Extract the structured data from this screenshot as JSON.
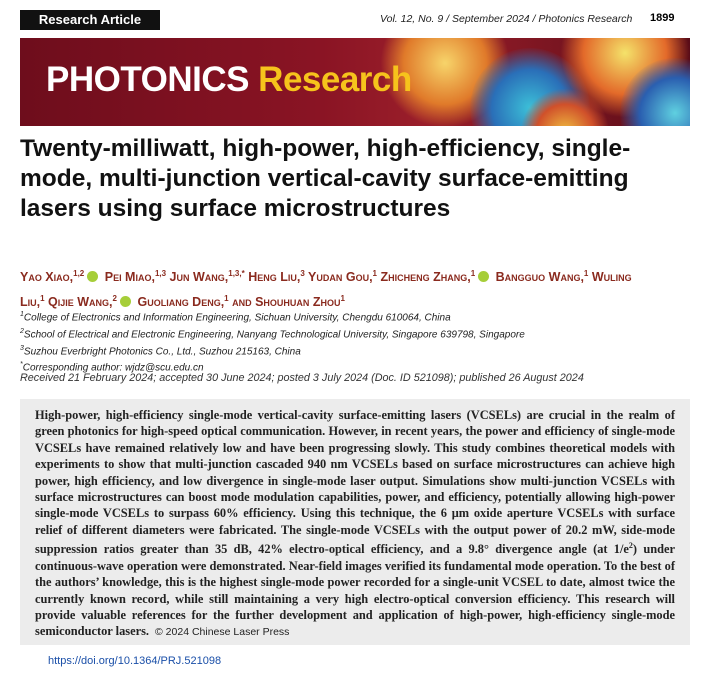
{
  "header": {
    "label": "Research Article",
    "citation": "Vol. 12, No. 9 / September 2024 / Photonics Research",
    "page": "1899"
  },
  "banner": {
    "word1": "PHOTONICS",
    "word2": "Research"
  },
  "title": "Twenty-milliwatt, high-power, high-efficiency, single-mode, multi-junction vertical-cavity surface-emitting lasers using surface microstructures",
  "authors": [
    {
      "name": "Yao Xiao,",
      "sup": "1,2",
      "orcid": true
    },
    {
      "name": "Pei Miao,",
      "sup": "1,3",
      "orcid": false
    },
    {
      "name": "Jun Wang,",
      "sup": "1,3,*",
      "orcid": false
    },
    {
      "name": "Heng Liu,",
      "sup": "3",
      "orcid": false
    },
    {
      "name": "Yudan Gou,",
      "sup": "1",
      "orcid": false
    },
    {
      "name": "Zhicheng Zhang,",
      "sup": "1",
      "orcid": true
    },
    {
      "name": "Bangguo Wang,",
      "sup": "1",
      "orcid": false
    },
    {
      "name": "Wuling Liu,",
      "sup": "1",
      "orcid": false
    },
    {
      "name": "Qijie Wang,",
      "sup": "2",
      "orcid": true
    },
    {
      "name": "Guoliang Deng,",
      "sup": "1",
      "orcid": false
    },
    {
      "name": "and Shouhuan Zhou",
      "sup": "1",
      "orcid": false
    }
  ],
  "affiliations": [
    {
      "sup": "1",
      "text": "College of Electronics and Information Engineering, Sichuan University, Chengdu 610064, China"
    },
    {
      "sup": "2",
      "text": "School of Electrical and Electronic Engineering, Nanyang Technological University, Singapore 639798, Singapore"
    },
    {
      "sup": "3",
      "text": "Suzhou Everbright Photonics Co., Ltd., Suzhou 215163, China"
    },
    {
      "sup": "*",
      "text": "Corresponding author: wjdz@scu.edu.cn"
    }
  ],
  "history": "Received 21 February 2024; accepted 30 June 2024; posted 3 July 2024 (Doc. ID 521098); published 26 August 2024",
  "abstract": {
    "before": "High-power, high-efficiency single-mode vertical-cavity surface-emitting lasers (VCSELs) are crucial in the realm of green photonics for high-speed optical communication. However, in recent years, the power and efficiency of single-mode VCSELs have remained relatively low and have been progressing slowly. This study combines theoretical models with experiments to show that multi-junction cascaded 940 nm VCSELs based on surface microstructures can achieve high power, high efficiency, and low divergence in single-mode laser output. Simulations show multi-junction VCSELs with surface microstructures can boost mode modulation capabilities, power, and efficiency, potentially allowing high-power single-mode VCSELs to surpass 60% efficiency. Using this technique, the 6 μm oxide aperture VCSELs with surface relief of different diameters were fabricated. The single-mode VCSELs with the output power of 20.2 mW, side-mode suppression ratios greater than 35 dB, 42% electro-optical efficiency, and a 9.8° divergence angle (at 1/e",
    "sup": "2",
    "after": ") under continuous-wave operation were demonstrated. Near-field images verified its fundamental mode operation. To the best of the authors’ knowledge, this is the highest single-mode power recorded for a single-unit VCSEL to date, almost twice the currently known record, while still maintaining a very high electro-optical conversion efficiency. This research will provide valuable references for the further development and application of high-power, high-efficiency single-mode semiconductor lasers.",
    "copyright": "© 2024 Chinese Laser Press"
  },
  "doi": "https://doi.org/10.1364/PRJ.521098"
}
